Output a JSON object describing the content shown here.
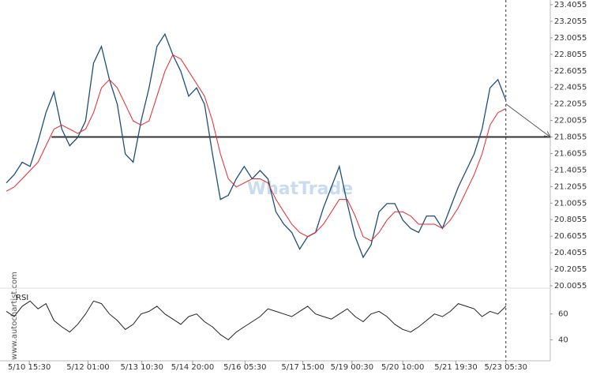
{
  "chart_data": {
    "type": "line",
    "watermark": "WhatTrade",
    "side_text": "www.autochartist.com",
    "x": [
      0,
      1,
      2,
      3,
      4,
      5,
      6,
      7,
      8,
      9,
      10,
      11,
      12,
      13,
      14,
      15,
      16,
      17,
      18,
      19,
      20,
      21,
      22,
      23,
      24,
      25,
      26,
      27,
      28,
      29,
      30,
      31,
      32,
      33,
      34,
      35,
      36,
      37,
      38,
      39,
      40,
      41,
      42,
      43,
      44,
      45,
      46,
      47,
      48,
      49,
      50,
      51,
      52,
      53,
      54,
      55,
      56,
      57,
      58,
      59,
      60,
      61,
      62,
      63
    ],
    "xlim": [
      0,
      68.6
    ],
    "xticks": [
      {
        "value": 2.9,
        "label": "5/10 15:30"
      },
      {
        "value": 10.3,
        "label": "5/12 01:00"
      },
      {
        "value": 17.1,
        "label": "5/13 10:30"
      },
      {
        "value": 23.5,
        "label": "5/14 20:00"
      },
      {
        "value": 30.1,
        "label": "5/16 05:30"
      },
      {
        "value": 37.4,
        "label": "5/17 15:00"
      },
      {
        "value": 43.6,
        "label": "5/19 00:30"
      },
      {
        "value": 50.0,
        "label": "5/20 10:00"
      },
      {
        "value": 56.7,
        "label": "5/21 19:30"
      },
      {
        "value": 63,
        "label": "5/23 05:30"
      }
    ],
    "ylim": [
      20.0055,
      23.4055
    ],
    "yticks": [
      20.0055,
      20.2055,
      20.4055,
      20.6055,
      20.8055,
      21.0055,
      21.2055,
      21.4055,
      21.6055,
      21.8055,
      22.0055,
      22.2055,
      22.4055,
      22.6055,
      22.8055,
      23.0055,
      23.2055,
      23.4055
    ],
    "series": [
      {
        "color": "#1f4e79",
        "values": [
          21.25,
          21.35,
          21.5,
          21.45,
          21.75,
          22.1,
          22.35,
          21.9,
          21.7,
          21.8,
          22.0,
          22.7,
          22.9,
          22.5,
          22.2,
          21.6,
          21.5,
          22.0,
          22.4,
          22.9,
          23.05,
          22.8,
          22.6,
          22.3,
          22.4,
          22.2,
          21.6,
          21.05,
          21.1,
          21.3,
          21.45,
          21.3,
          21.4,
          21.3,
          20.9,
          20.75,
          20.65,
          20.45,
          20.6,
          20.65,
          20.95,
          21.2,
          21.45,
          21.0,
          20.6,
          20.35,
          20.5,
          20.9,
          21.0,
          21.0,
          20.8,
          20.7,
          20.65,
          20.85,
          20.85,
          20.7,
          20.95,
          21.2,
          21.4,
          21.6,
          21.9,
          22.4,
          22.5,
          22.25
        ]
      },
      {
        "color": "#e8262b",
        "values": [
          21.15,
          21.2,
          21.3,
          21.4,
          21.5,
          21.7,
          21.9,
          21.95,
          21.9,
          21.85,
          21.9,
          22.1,
          22.4,
          22.5,
          22.4,
          22.2,
          22.0,
          21.95,
          22.0,
          22.3,
          22.6,
          22.8,
          22.75,
          22.6,
          22.45,
          22.3,
          22.0,
          21.6,
          21.3,
          21.2,
          21.25,
          21.3,
          21.3,
          21.25,
          21.05,
          20.9,
          20.75,
          20.65,
          20.6,
          20.65,
          20.75,
          20.9,
          21.05,
          21.05,
          20.85,
          20.6,
          20.55,
          20.65,
          20.8,
          20.9,
          20.9,
          20.85,
          20.75,
          20.75,
          20.75,
          20.7,
          20.8,
          20.95,
          21.15,
          21.35,
          21.6,
          21.95,
          22.1,
          22.15
        ]
      }
    ],
    "support_level": {
      "value": 21.8055,
      "start": 5.7,
      "color": "#333333"
    },
    "forecast_arrow": {
      "from": [
        63,
        22.2055
      ],
      "to": [
        68.6,
        21.8055
      ]
    },
    "current_time": 63,
    "rsi": {
      "label": "RSI",
      "color": "#222222",
      "ylim": [
        28,
        80
      ],
      "yticks": [
        40,
        60
      ],
      "values": [
        62,
        58,
        66,
        70,
        64,
        68,
        55,
        50,
        46,
        52,
        60,
        70,
        68,
        60,
        55,
        48,
        52,
        60,
        62,
        66,
        60,
        56,
        52,
        58,
        60,
        54,
        50,
        44,
        40,
        46,
        50,
        54,
        58,
        64,
        62,
        60,
        58,
        62,
        66,
        60,
        58,
        56,
        60,
        64,
        58,
        54,
        60,
        62,
        58,
        52,
        48,
        46,
        50,
        55,
        60,
        58,
        62,
        68,
        66,
        64,
        58,
        62,
        60,
        66
      ]
    }
  }
}
